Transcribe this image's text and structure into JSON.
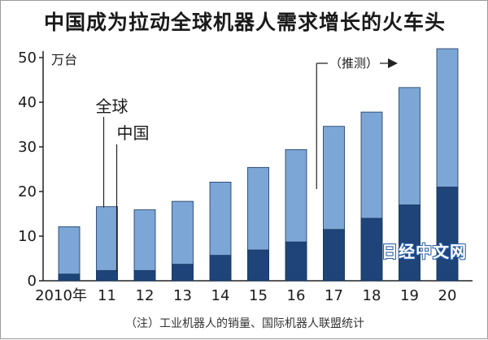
{
  "title": "中国成为拉动全球机器人需求增长的火车头",
  "unit": "万台",
  "note": "（注）工业机器人的销量、国际机器人联盟统计",
  "watermark": "日经中文网",
  "colors": {
    "global": "#7ca6d6",
    "china": "#1e4479",
    "bar_edge": "#17365e",
    "axis": "#222222"
  },
  "chart_data": {
    "type": "bar",
    "categories": [
      "2010年",
      "11",
      "12",
      "13",
      "14",
      "15",
      "16",
      "17",
      "18",
      "19",
      "20"
    ],
    "series": [
      {
        "name": "全球",
        "values": [
          12.1,
          16.6,
          15.9,
          17.8,
          22.1,
          25.4,
          29.4,
          34.6,
          37.8,
          43.3,
          52.0
        ]
      },
      {
        "name": "中国",
        "values": [
          1.5,
          2.3,
          2.3,
          3.7,
          5.7,
          6.9,
          8.7,
          11.5,
          14.0,
          17.0,
          21.0
        ]
      }
    ],
    "yticks": [
      0,
      10,
      20,
      30,
      40,
      50
    ],
    "ylim": [
      0,
      50
    ],
    "forecast_label": "（推测）",
    "forecast_start_index": 7
  }
}
